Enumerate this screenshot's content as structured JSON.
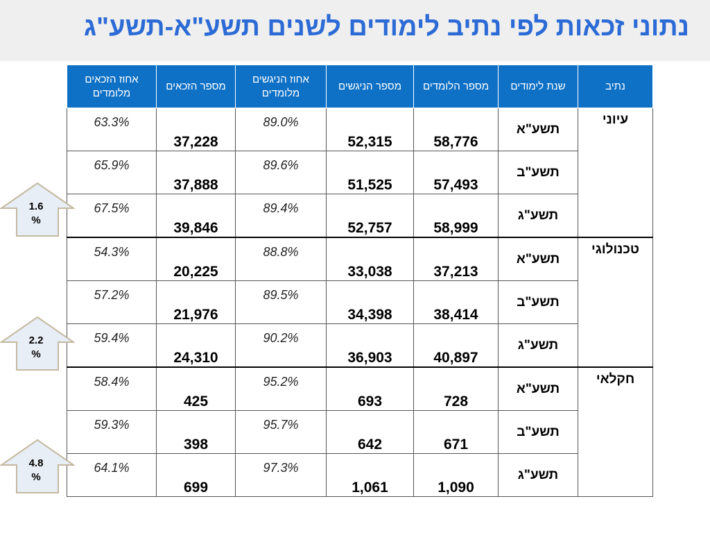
{
  "title": "נתוני זכאות לפי נתיב לימודים לשנים תשע\"א-תשע\"ג",
  "headers": {
    "track": "נתיב",
    "year": "שנת לימודים",
    "students": "מספר הלומדים",
    "examinees": "מספר הניגשים",
    "examinees_pct": "אחוז הניגשים מלומדים",
    "eligible": "מספר הזכאים",
    "eligible_pct": "אחוז הזכאים מלומדים"
  },
  "groups": [
    {
      "track": "עיוני",
      "rows": [
        {
          "year": "תשע\"א",
          "students": "58,776",
          "examinees": "52,315",
          "examinees_pct": "89.0%",
          "eligible": "37,228",
          "eligible_pct": "63.3%"
        },
        {
          "year": "תשע\"ב",
          "students": "57,493",
          "examinees": "51,525",
          "examinees_pct": "89.6%",
          "eligible": "37,888",
          "eligible_pct": "65.9%"
        },
        {
          "year": "תשע\"ג",
          "students": "58,999",
          "examinees": "52,757",
          "examinees_pct": "89.4%",
          "eligible": "39,846",
          "eligible_pct": "67.5%"
        }
      ]
    },
    {
      "track": "טכנולוגי",
      "rows": [
        {
          "year": "תשע\"א",
          "students": "37,213",
          "examinees": "33,038",
          "examinees_pct": "88.8%",
          "eligible": "20,225",
          "eligible_pct": "54.3%"
        },
        {
          "year": "תשע\"ב",
          "students": "38,414",
          "examinees": "34,398",
          "examinees_pct": "89.5%",
          "eligible": "21,976",
          "eligible_pct": "57.2%"
        },
        {
          "year": "תשע\"ג",
          "students": "40,897",
          "examinees": "36,903",
          "examinees_pct": "90.2%",
          "eligible": "24,310",
          "eligible_pct": "59.4%"
        }
      ]
    },
    {
      "track": "חקלאי",
      "rows": [
        {
          "year": "תשע\"א",
          "students": "728",
          "examinees": "693",
          "examinees_pct": "95.2%",
          "eligible": "425",
          "eligible_pct": "58.4%"
        },
        {
          "year": "תשע\"ב",
          "students": "671",
          "examinees": "642",
          "examinees_pct": "95.7%",
          "eligible": "398",
          "eligible_pct": "59.3%"
        },
        {
          "year": "תשע\"ג",
          "students": "1,090",
          "examinees": "1,061",
          "examinees_pct": "97.3%",
          "eligible": "699",
          "eligible_pct": "64.1%"
        }
      ]
    }
  ],
  "arrows": [
    {
      "line1": "1.6",
      "line2": "%"
    },
    {
      "line1": "2.2",
      "line2": "%"
    },
    {
      "line1": "4.8",
      "line2": "%"
    }
  ],
  "colors": {
    "title": "#2c6bd6",
    "header_bg": "#0f71c6",
    "arrow_fill": "#e8eef6",
    "arrow_stroke": "#c4b9a0"
  }
}
